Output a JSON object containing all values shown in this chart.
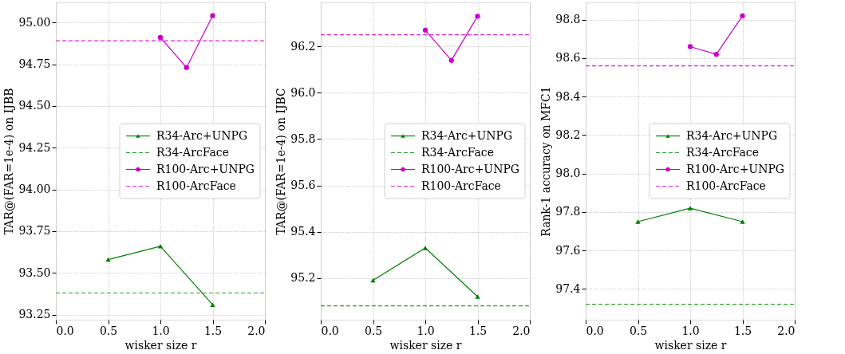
{
  "chart_data": [
    {
      "type": "line",
      "xlabel": "wisker size r",
      "ylabel": "TAR@(FAR=1e-4) on IJBB",
      "xlim": [
        0,
        2
      ],
      "ylim": [
        93.22,
        95.12
      ],
      "xticks": [
        {
          "value": 0,
          "label": "0.0"
        },
        {
          "value": 0.5,
          "label": "0.5"
        },
        {
          "value": 1,
          "label": "1.0"
        },
        {
          "value": 1.5,
          "label": "1.5"
        },
        {
          "value": 2,
          "label": "2.0"
        }
      ],
      "yticks": [
        {
          "value": 93.25,
          "label": "93.25"
        },
        {
          "value": 93.5,
          "label": "93.50"
        },
        {
          "value": 93.75,
          "label": "93.75"
        },
        {
          "value": 94,
          "label": "94.00"
        },
        {
          "value": 94.25,
          "label": "94.25"
        },
        {
          "value": 94.5,
          "label": "94.50"
        },
        {
          "value": 94.75,
          "label": "94.75"
        },
        {
          "value": 95,
          "label": "95.00"
        }
      ],
      "grid": true,
      "legend": "center right",
      "series": [
        {
          "name": "R34-Arc+UNPG",
          "color": "#008000",
          "x": [
            0.5,
            1.0,
            1.5
          ],
          "values": [
            93.58,
            93.66,
            93.31
          ],
          "marker": "triangle",
          "line_style": "solid"
        },
        {
          "name": "R34-ArcFace",
          "color": "#2ca02c",
          "x": [
            0,
            2
          ],
          "values": [
            93.38,
            93.38
          ],
          "marker": "none",
          "line_style": "dashed"
        },
        {
          "name": "R100-Arc+UNPG",
          "color": "#cc00cc",
          "x": [
            1.0,
            1.25,
            1.5
          ],
          "values": [
            94.91,
            94.73,
            95.04
          ],
          "marker": "circle",
          "line_style": "solid"
        },
        {
          "name": "R100-ArcFace",
          "color": "#dd22dd",
          "x": [
            0,
            2
          ],
          "values": [
            94.89,
            94.89
          ],
          "marker": "none",
          "line_style": "dashed"
        }
      ]
    },
    {
      "type": "line",
      "xlabel": "wisker size r",
      "ylabel": "TAR@(FAR=1e-4) on IJBC",
      "xlim": [
        0,
        2
      ],
      "ylim": [
        95.02,
        96.39
      ],
      "xticks": [
        {
          "value": 0,
          "label": "0.0"
        },
        {
          "value": 0.5,
          "label": "0.5"
        },
        {
          "value": 1,
          "label": "1.0"
        },
        {
          "value": 1.5,
          "label": "1.5"
        },
        {
          "value": 2,
          "label": "2.0"
        }
      ],
      "yticks": [
        95.2,
        95.4,
        95.6,
        95.8,
        {
          "value": 96,
          "label": "96.0"
        },
        96.2
      ],
      "grid": true,
      "legend": "center right",
      "series": [
        {
          "name": "R34-Arc+UNPG",
          "color": "#008000",
          "x": [
            0.5,
            1.0,
            1.5
          ],
          "values": [
            95.19,
            95.33,
            95.12
          ],
          "marker": "triangle",
          "line_style": "solid"
        },
        {
          "name": "R34-ArcFace",
          "color": "#2ca02c",
          "x": [
            0,
            2
          ],
          "values": [
            95.08,
            95.08
          ],
          "marker": "none",
          "line_style": "dashed"
        },
        {
          "name": "R100-Arc+UNPG",
          "color": "#cc00cc",
          "x": [
            1.0,
            1.25,
            1.5
          ],
          "values": [
            96.27,
            96.14,
            96.33
          ],
          "marker": "circle",
          "line_style": "solid"
        },
        {
          "name": "R100-ArcFace",
          "color": "#dd22dd",
          "x": [
            0,
            2
          ],
          "values": [
            96.25,
            96.25
          ],
          "marker": "none",
          "line_style": "dashed"
        }
      ]
    },
    {
      "type": "line",
      "xlabel": "wisker size r",
      "ylabel": "Rank-1 accuracy on MFC1",
      "xlim": [
        0,
        2
      ],
      "ylim": [
        97.24,
        98.89
      ],
      "xticks": [
        {
          "value": 0,
          "label": "0.0"
        },
        {
          "value": 0.5,
          "label": "0.5"
        },
        {
          "value": 1,
          "label": "1.0"
        },
        {
          "value": 1.5,
          "label": "1.5"
        },
        {
          "value": 2,
          "label": "2.0"
        }
      ],
      "yticks": [
        97.4,
        97.6,
        97.8,
        {
          "value": 98,
          "label": "98.0"
        },
        98.2,
        98.4,
        98.6,
        98.8
      ],
      "grid": true,
      "legend": "center right",
      "series": [
        {
          "name": "R34-Arc+UNPG",
          "color": "#008000",
          "x": [
            0.5,
            1.0,
            1.5
          ],
          "values": [
            97.75,
            97.82,
            97.75
          ],
          "marker": "triangle",
          "line_style": "solid"
        },
        {
          "name": "R34-ArcFace",
          "color": "#2ca02c",
          "x": [
            0,
            2
          ],
          "values": [
            97.32,
            97.32
          ],
          "marker": "none",
          "line_style": "dashed"
        },
        {
          "name": "R100-Arc+UNPG",
          "color": "#cc00cc",
          "x": [
            1.0,
            1.25,
            1.5
          ],
          "values": [
            98.66,
            98.62,
            98.82
          ],
          "marker": "circle",
          "line_style": "solid"
        },
        {
          "name": "R100-ArcFace",
          "color": "#dd22dd",
          "x": [
            0,
            2
          ],
          "values": [
            98.56,
            98.56
          ],
          "marker": "none",
          "line_style": "dashed"
        }
      ]
    }
  ]
}
